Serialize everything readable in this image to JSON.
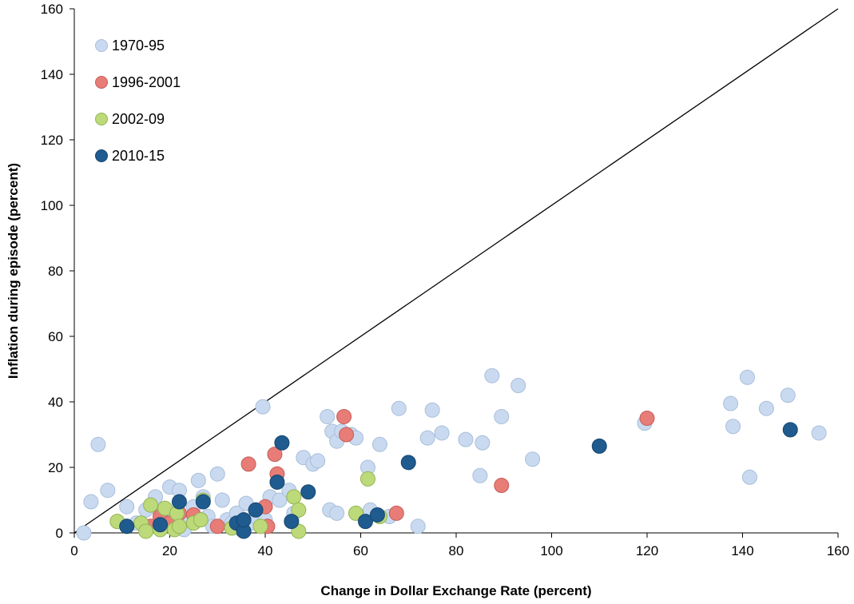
{
  "chart_data": {
    "type": "scatter",
    "title": "",
    "xlabel": "Change in Dollar Exchange Rate (percent)",
    "ylabel": "Inflation during episode (percent)",
    "xlim": [
      0,
      160
    ],
    "ylim": [
      0,
      160
    ],
    "xticks": [
      0,
      20,
      40,
      60,
      80,
      100,
      120,
      140,
      160
    ],
    "yticks": [
      0,
      20,
      40,
      60,
      80,
      100,
      120,
      140,
      160
    ],
    "grid": false,
    "legend_position": "top-left",
    "reference_line": {
      "from": [
        0,
        0
      ],
      "to": [
        160,
        160
      ],
      "color": "#000000"
    },
    "series": [
      {
        "name": "1970-95",
        "color": "#c9daf0",
        "edge": "#a9bedb",
        "points": [
          [
            2,
            0
          ],
          [
            3.5,
            9.5
          ],
          [
            5,
            27
          ],
          [
            7,
            13
          ],
          [
            11,
            8
          ],
          [
            13,
            3
          ],
          [
            15,
            7
          ],
          [
            17,
            11
          ],
          [
            18,
            6
          ],
          [
            19,
            3
          ],
          [
            20,
            14
          ],
          [
            21,
            5
          ],
          [
            22,
            13
          ],
          [
            23,
            1
          ],
          [
            24,
            4
          ],
          [
            25,
            8
          ],
          [
            26,
            16
          ],
          [
            27,
            11
          ],
          [
            28,
            5
          ],
          [
            29,
            2
          ],
          [
            30,
            18
          ],
          [
            31,
            10
          ],
          [
            32,
            4
          ],
          [
            33,
            3
          ],
          [
            34,
            6
          ],
          [
            35,
            1
          ],
          [
            36,
            9
          ],
          [
            37,
            3
          ],
          [
            38,
            5
          ],
          [
            39.5,
            38.5
          ],
          [
            40,
            4
          ],
          [
            41,
            11
          ],
          [
            43,
            10
          ],
          [
            45,
            13
          ],
          [
            46,
            6
          ],
          [
            48,
            23
          ],
          [
            50,
            21
          ],
          [
            51,
            22
          ],
          [
            53,
            35.5
          ],
          [
            54,
            31
          ],
          [
            55,
            28
          ],
          [
            56,
            31
          ],
          [
            58,
            30
          ],
          [
            59,
            29
          ],
          [
            61.5,
            20
          ],
          [
            62,
            7
          ],
          [
            64,
            27
          ],
          [
            66,
            5
          ],
          [
            68,
            38
          ],
          [
            72,
            2
          ],
          [
            74,
            29
          ],
          [
            75,
            37.5
          ],
          [
            77,
            30.5
          ],
          [
            82,
            28.5
          ],
          [
            85,
            17.5
          ],
          [
            85.5,
            27.5
          ],
          [
            87.5,
            48
          ],
          [
            89.5,
            35.5
          ],
          [
            93,
            45
          ],
          [
            96,
            22.5
          ],
          [
            119.5,
            33.5
          ],
          [
            137.5,
            39.5
          ],
          [
            138,
            32.5
          ],
          [
            141,
            47.5
          ],
          [
            141.5,
            17
          ],
          [
            145,
            38
          ],
          [
            149.5,
            42
          ],
          [
            156,
            30.5
          ],
          [
            53.5,
            7
          ],
          [
            55,
            6
          ]
        ]
      },
      {
        "name": "1996-2001",
        "color": "#e87c77",
        "edge": "#c45f5a",
        "points": [
          [
            16,
            2
          ],
          [
            18,
            5
          ],
          [
            20,
            3
          ],
          [
            22,
            6
          ],
          [
            25,
            5.5
          ],
          [
            30,
            2
          ],
          [
            36.5,
            21
          ],
          [
            40,
            8
          ],
          [
            40.5,
            2
          ],
          [
            42,
            24
          ],
          [
            42.5,
            18
          ],
          [
            56.5,
            35.5
          ],
          [
            57,
            30
          ],
          [
            67.5,
            6
          ],
          [
            89.5,
            14.5
          ],
          [
            120,
            35
          ]
        ]
      },
      {
        "name": "2002-09",
        "color": "#bdda7a",
        "edge": "#93b455",
        "points": [
          [
            9,
            3.5
          ],
          [
            11,
            2
          ],
          [
            14,
            3
          ],
          [
            15,
            0.5
          ],
          [
            16,
            8.5
          ],
          [
            18,
            1
          ],
          [
            19,
            7.5
          ],
          [
            21,
            1
          ],
          [
            21.5,
            6
          ],
          [
            22,
            2
          ],
          [
            25,
            3
          ],
          [
            26.5,
            4
          ],
          [
            27,
            10
          ],
          [
            33,
            1.5
          ],
          [
            39,
            2
          ],
          [
            46,
            11
          ],
          [
            47,
            7
          ],
          [
            47,
            0.5
          ],
          [
            61.5,
            16.5
          ],
          [
            59,
            6
          ],
          [
            64,
            5
          ]
        ]
      },
      {
        "name": "2010-15",
        "color": "#1f5b8e",
        "edge": "#164670",
        "points": [
          [
            11,
            2
          ],
          [
            18,
            2.5
          ],
          [
            22,
            9.5
          ],
          [
            27,
            9.5
          ],
          [
            34,
            3
          ],
          [
            35.5,
            0.5
          ],
          [
            35.5,
            4
          ],
          [
            38,
            7
          ],
          [
            42.5,
            15.5
          ],
          [
            43.5,
            27.5
          ],
          [
            45.5,
            3.5
          ],
          [
            49,
            12.5
          ],
          [
            61,
            3.5
          ],
          [
            63.5,
            5.5
          ],
          [
            70,
            21.5
          ],
          [
            110,
            26.5
          ],
          [
            150,
            31.5
          ]
        ]
      }
    ]
  }
}
